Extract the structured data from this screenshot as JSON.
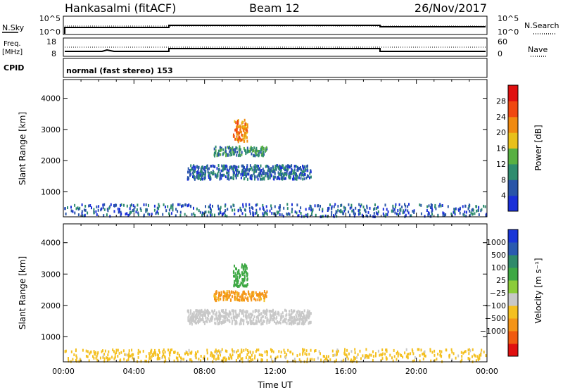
{
  "header": {
    "station": "Hankasalmi (fitACF)",
    "beam": "Beam 12",
    "date": "26/Nov/2017"
  },
  "nsky_panel": {
    "left_label": "N.Sky",
    "left_top_tick": "10^5",
    "left_bottom_tick": "10^0",
    "right_label": "N.Search",
    "right_top_tick": "10^5",
    "right_bottom_tick": "10^0"
  },
  "freq_panel": {
    "left_label_1": "Freq.",
    "left_label_2": "[MHz]",
    "left_top_tick": "18",
    "left_bottom_tick": "8",
    "right_label": "Nave",
    "right_top_tick": "60",
    "right_bottom_tick": "0"
  },
  "cpid": {
    "label": "CPID",
    "value": "normal (fast stereo) 153"
  },
  "colors": {
    "power_scale": [
      "#1a2fd8",
      "#2955a8",
      "#2e8c6e",
      "#58b042",
      "#e8c01a",
      "#f08a10",
      "#f04810",
      "#e01010"
    ],
    "velocity_scale": [
      "#e01010",
      "#f05a10",
      "#f49418",
      "#f4c020",
      "#c8c8c8",
      "#8ccc3a",
      "#3ea844",
      "#2f8a6a",
      "#2a5ab0",
      "#1a36d8"
    ]
  },
  "chart_data": [
    {
      "type": "heatmap",
      "title": "",
      "xlabel": "",
      "ylabel": "Slant Range [km]",
      "ylim": [
        200,
        4600
      ],
      "xlim": [
        "00:00",
        "24:00"
      ],
      "y_ticks": [
        "1000",
        "2000",
        "3000",
        "4000"
      ],
      "colorbar_label": "Power [dB]",
      "colorbar_ticks": [
        "4",
        "8",
        "12",
        "16",
        "20",
        "24",
        "28"
      ],
      "colorbar_range": [
        0,
        32
      ],
      "features": [
        {
          "name": "echo patch",
          "t_start_h": 9.6,
          "t_end_h": 10.4,
          "range_start_km": 2600,
          "range_end_km": 3300,
          "power_db": 22
        },
        {
          "name": "echo band",
          "t_start_h": 8.5,
          "t_end_h": 11.5,
          "range_start_km": 2150,
          "range_end_km": 2450,
          "power_db": 10
        },
        {
          "name": "echo band",
          "t_start_h": 7.0,
          "t_end_h": 14.0,
          "range_start_km": 1400,
          "range_end_km": 1850,
          "power_db": 7
        },
        {
          "name": "near-range clutter",
          "t_start_h": 0.0,
          "t_end_h": 24.0,
          "range_start_km": 200,
          "range_end_km": 600,
          "power_db": 6
        }
      ]
    },
    {
      "type": "heatmap",
      "title": "",
      "xlabel": "Time UT",
      "ylabel": "Slant Range [km]",
      "ylim": [
        200,
        4600
      ],
      "xlim": [
        "00:00",
        "24:00"
      ],
      "x_ticks": [
        "00:00",
        "04:00",
        "08:00",
        "12:00",
        "16:00",
        "20:00",
        "00:00"
      ],
      "y_ticks": [
        "1000",
        "2000",
        "3000",
        "4000"
      ],
      "colorbar_label": "Velocity [m s⁻¹]",
      "colorbar_ticks": [
        "1000",
        "500",
        "100",
        "25",
        "−25",
        "−100",
        "−500",
        "−1000"
      ],
      "features": [
        {
          "name": "echo patch",
          "t_start_h": 9.6,
          "t_end_h": 10.4,
          "range_start_km": 2600,
          "range_end_km": 3300,
          "velocity_ms": 300
        },
        {
          "name": "echo band",
          "t_start_h": 8.5,
          "t_end_h": 11.5,
          "range_start_km": 2150,
          "range_end_km": 2450,
          "velocity_ms": -150
        },
        {
          "name": "ground scatter band",
          "t_start_h": 7.0,
          "t_end_h": 14.0,
          "range_start_km": 1400,
          "range_end_km": 1850,
          "velocity_ms": 0
        },
        {
          "name": "near-range clutter",
          "t_start_h": 0.0,
          "t_end_h": 24.0,
          "range_start_km": 200,
          "range_end_km": 600,
          "velocity_ms": -60
        }
      ]
    }
  ]
}
